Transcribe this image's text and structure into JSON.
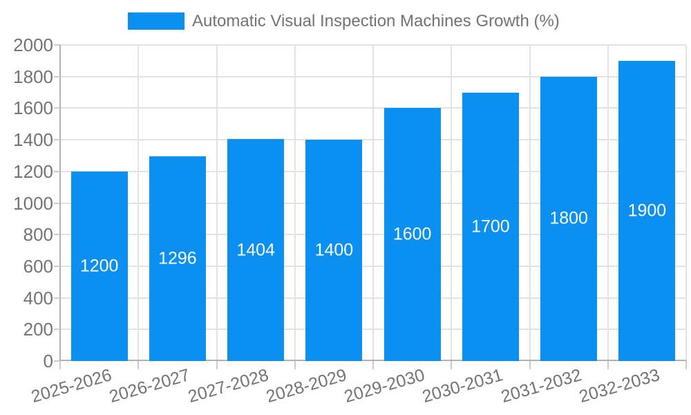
{
  "legend": {
    "label": "Automatic Visual Inspection Machines Growth (%)"
  },
  "colors": {
    "bar": "#0b8ff1",
    "grid": "#e3e3e3",
    "axis": "#b1b1b1",
    "tick": "#cccccc",
    "text": "#737373",
    "bar_label": "#ffffff",
    "background": "#ffffff"
  },
  "chart_data": {
    "type": "bar",
    "title": "Automatic Visual Inspection Machines Growth (%)",
    "categories": [
      "2025-2026",
      "2026-2027",
      "2027-2028",
      "2028-2029",
      "2029-2030",
      "2030-2031",
      "2031-2032",
      "2032-2033"
    ],
    "values": [
      1200,
      1296,
      1404,
      1400,
      1600,
      1700,
      1800,
      1900
    ],
    "bar_value_labels": [
      1200,
      1296,
      1404,
      1400,
      1600,
      1700,
      1800,
      1900
    ],
    "xlabel": "",
    "ylabel": "",
    "ylim": [
      0,
      2000
    ],
    "ytick_step": 200,
    "yticks": [
      0,
      200,
      400,
      600,
      800,
      1000,
      1200,
      1400,
      1600,
      1800,
      2000
    ],
    "grid": "horizontal-and-vertical",
    "legend_position": "top-center",
    "value_label_position": "inside-center",
    "x_tick_label_rotation_deg": -16
  }
}
